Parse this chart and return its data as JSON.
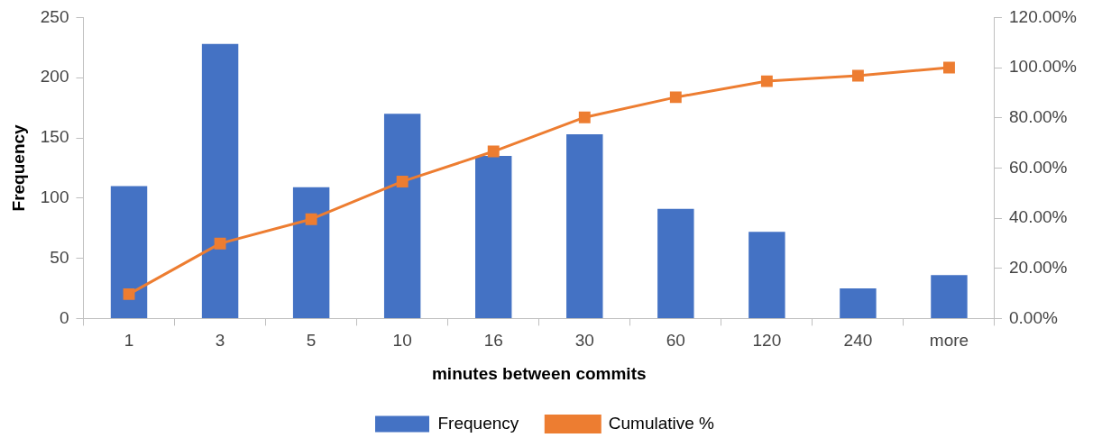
{
  "chart_data": {
    "type": "bar",
    "xlabel": "minutes between commits",
    "ylabel": "Frequency",
    "categories": [
      "1",
      "3",
      "5",
      "10",
      "16",
      "30",
      "60",
      "120",
      "240",
      "more"
    ],
    "series": [
      {
        "name": "Frequency",
        "color": "#4472c4",
        "values": [
          110,
          228,
          109,
          170,
          135,
          153,
          91,
          72,
          25,
          36
        ]
      },
      {
        "name": "Cumulative %",
        "type": "line",
        "axis": "y2",
        "color": "#ed7d31",
        "marker": "square",
        "values": [
          9.7,
          29.9,
          39.6,
          54.6,
          66.6,
          80.2,
          88.2,
          94.6,
          96.8,
          100
        ]
      }
    ],
    "ylim": [
      0,
      250
    ],
    "yticks": [
      0,
      50,
      100,
      150,
      200,
      250
    ],
    "y2lim": [
      0,
      120
    ],
    "y2ticks": [
      {
        "value": 0,
        "label": "0.00%"
      },
      {
        "value": 20,
        "label": "20.00%"
      },
      {
        "value": 40,
        "label": "40.00%"
      },
      {
        "value": 60,
        "label": "60.00%"
      },
      {
        "value": 80,
        "label": "80.00%"
      },
      {
        "value": 100,
        "label": "100.00%"
      },
      {
        "value": 120,
        "label": "120.00%"
      }
    ],
    "grid": false,
    "legend": "bottom"
  }
}
